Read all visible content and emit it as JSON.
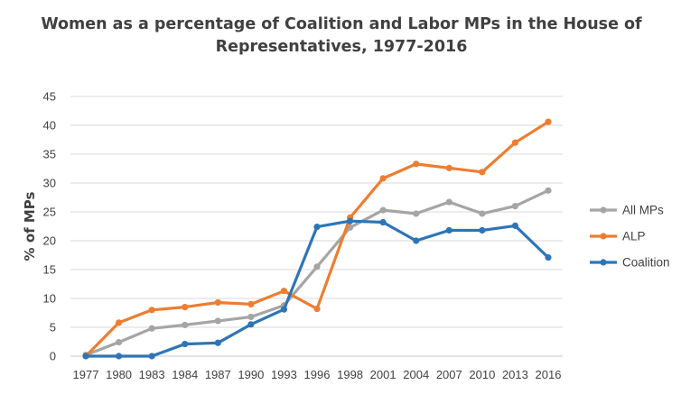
{
  "chart_data": {
    "type": "line",
    "title_lines": [
      "Women as a percentage of Coalition and Labor MPs in the House of",
      "Representatives, 1977-2016"
    ],
    "xlabel": "",
    "ylabel": "% of MPs",
    "ylim": [
      0,
      45
    ],
    "yticks": [
      "0",
      "5",
      "10",
      "15",
      "20",
      "25",
      "30",
      "35",
      "40",
      "45"
    ],
    "grid": true,
    "legend_position": "right",
    "categories": [
      "1977",
      "1980",
      "1983",
      "1984",
      "1987",
      "1990",
      "1993",
      "1996",
      "1998",
      "2001",
      "2004",
      "2007",
      "2010",
      "2013",
      "2016"
    ],
    "series": [
      {
        "name": "All MPs",
        "color": "#a5a5a5",
        "values": [
          0.2,
          2.4,
          4.8,
          5.4,
          6.1,
          6.8,
          8.8,
          15.5,
          22.3,
          25.3,
          24.7,
          26.7,
          24.7,
          26.0,
          28.7
        ]
      },
      {
        "name": "ALP",
        "color": "#ed7d31",
        "values": [
          0.0,
          5.8,
          8.0,
          8.5,
          9.3,
          9.0,
          11.3,
          8.2,
          24.0,
          30.8,
          33.3,
          32.6,
          31.9,
          37.0,
          40.6
        ]
      },
      {
        "name": "Coalition",
        "color": "#2e75b6",
        "values": [
          0.0,
          0.0,
          0.0,
          2.1,
          2.3,
          5.5,
          8.1,
          22.4,
          23.4,
          23.2,
          20.0,
          21.8,
          21.8,
          22.6,
          17.1
        ]
      }
    ]
  }
}
